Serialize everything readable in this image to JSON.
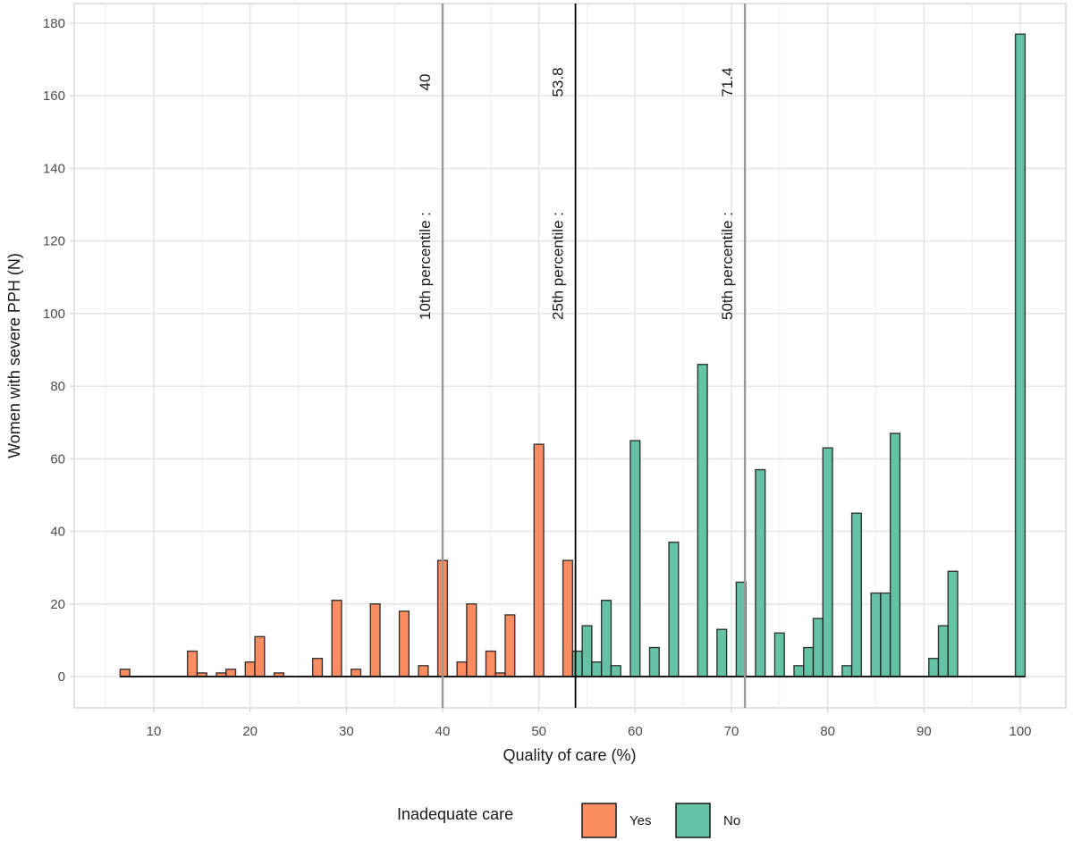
{
  "chart_data": {
    "type": "bar",
    "subtype": "histogram",
    "title": "",
    "xlabel": "Quality of care (%)",
    "ylabel": "Women with severe PPH (N)",
    "xlim": [
      3,
      106
    ],
    "ylim": [
      -9,
      185
    ],
    "x_ticks": [
      10,
      20,
      30,
      40,
      50,
      60,
      70,
      80,
      90,
      100
    ],
    "y_ticks": [
      0,
      20,
      40,
      60,
      80,
      100,
      120,
      140,
      160,
      180
    ],
    "binwidth": 1,
    "baseline_range": [
      6.5,
      100.5
    ],
    "grid": true,
    "legend": {
      "title": "Inadequate care",
      "position": "bottom",
      "entries": [
        {
          "label": "Yes",
          "color": "#FC8D62"
        },
        {
          "label": "No",
          "color": "#66C2A5"
        }
      ]
    },
    "series": [
      {
        "name": "Yes",
        "color": "#FC8D62",
        "x": [
          7,
          14,
          15,
          17,
          18,
          20,
          21,
          23,
          27,
          29,
          31,
          33,
          36,
          38,
          40,
          42,
          43,
          45,
          46,
          47,
          50,
          53
        ],
        "values": [
          2,
          7,
          1,
          1,
          2,
          4,
          11,
          1,
          5,
          21,
          2,
          20,
          18,
          3,
          32,
          4,
          20,
          7,
          1,
          17,
          64,
          32
        ]
      },
      {
        "name": "No",
        "color": "#66C2A5",
        "x": [
          54,
          55,
          56,
          57,
          58,
          60,
          62,
          64,
          67,
          69,
          71,
          73,
          75,
          77,
          78,
          79,
          80,
          82,
          83,
          85,
          86,
          87,
          91,
          92,
          93,
          100
        ],
        "values": [
          7,
          14,
          4,
          21,
          3,
          65,
          8,
          37,
          86,
          13,
          26,
          57,
          12,
          3,
          8,
          16,
          63,
          3,
          45,
          23,
          23,
          67,
          5,
          14,
          29,
          177
        ]
      }
    ],
    "reference_lines": [
      {
        "x": 40,
        "label": "10th percentile :",
        "value_label": "40",
        "color": "#999999"
      },
      {
        "x": 53.8,
        "label": "25th percentile :",
        "value_label": "53.8",
        "color": "#000000"
      },
      {
        "x": 71.4,
        "label": "50th percentile :",
        "value_label": "71.4",
        "color": "#999999"
      }
    ]
  }
}
